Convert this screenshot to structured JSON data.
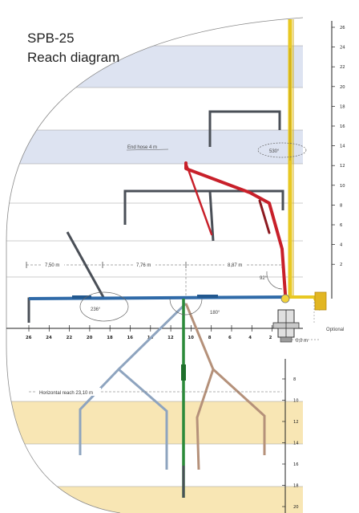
{
  "title_line1": "SPB-25",
  "title_line2": "Reach diagram",
  "labels": {
    "end_hose": "End hose 4 m",
    "optional": "Optional",
    "horizontal_reach": "Horizontal reach 23,10 m",
    "dim_left": "7,50 m",
    "dim_mid": "7,76 m",
    "dim_right": "8,87 m",
    "offset": "0,0 m",
    "angle_530": "530°",
    "angle_92": "92°",
    "angle_236": "236°",
    "angle_180": "180°"
  },
  "upper_scale": [
    "26",
    "24",
    "22",
    "20",
    "18",
    "16",
    "14",
    "12",
    "10",
    "8",
    "6",
    "4",
    "2"
  ],
  "x_scale": [
    "26",
    "24",
    "22",
    "20",
    "18",
    "16",
    "14",
    "12",
    "10",
    "8",
    "6",
    "4",
    "2"
  ],
  "lower_scale": [
    "8",
    "10",
    "12",
    "14",
    "16",
    "18",
    "20"
  ],
  "colors": {
    "mast": "#e8c823",
    "red_boom": "#c8202a",
    "blue_boom": "#2f6aa8",
    "green_boom": "#2c8a3a",
    "band_blue": "#dde3f1",
    "band_sand": "#f8e6b4",
    "dark_boom": "#4a4f57"
  }
}
